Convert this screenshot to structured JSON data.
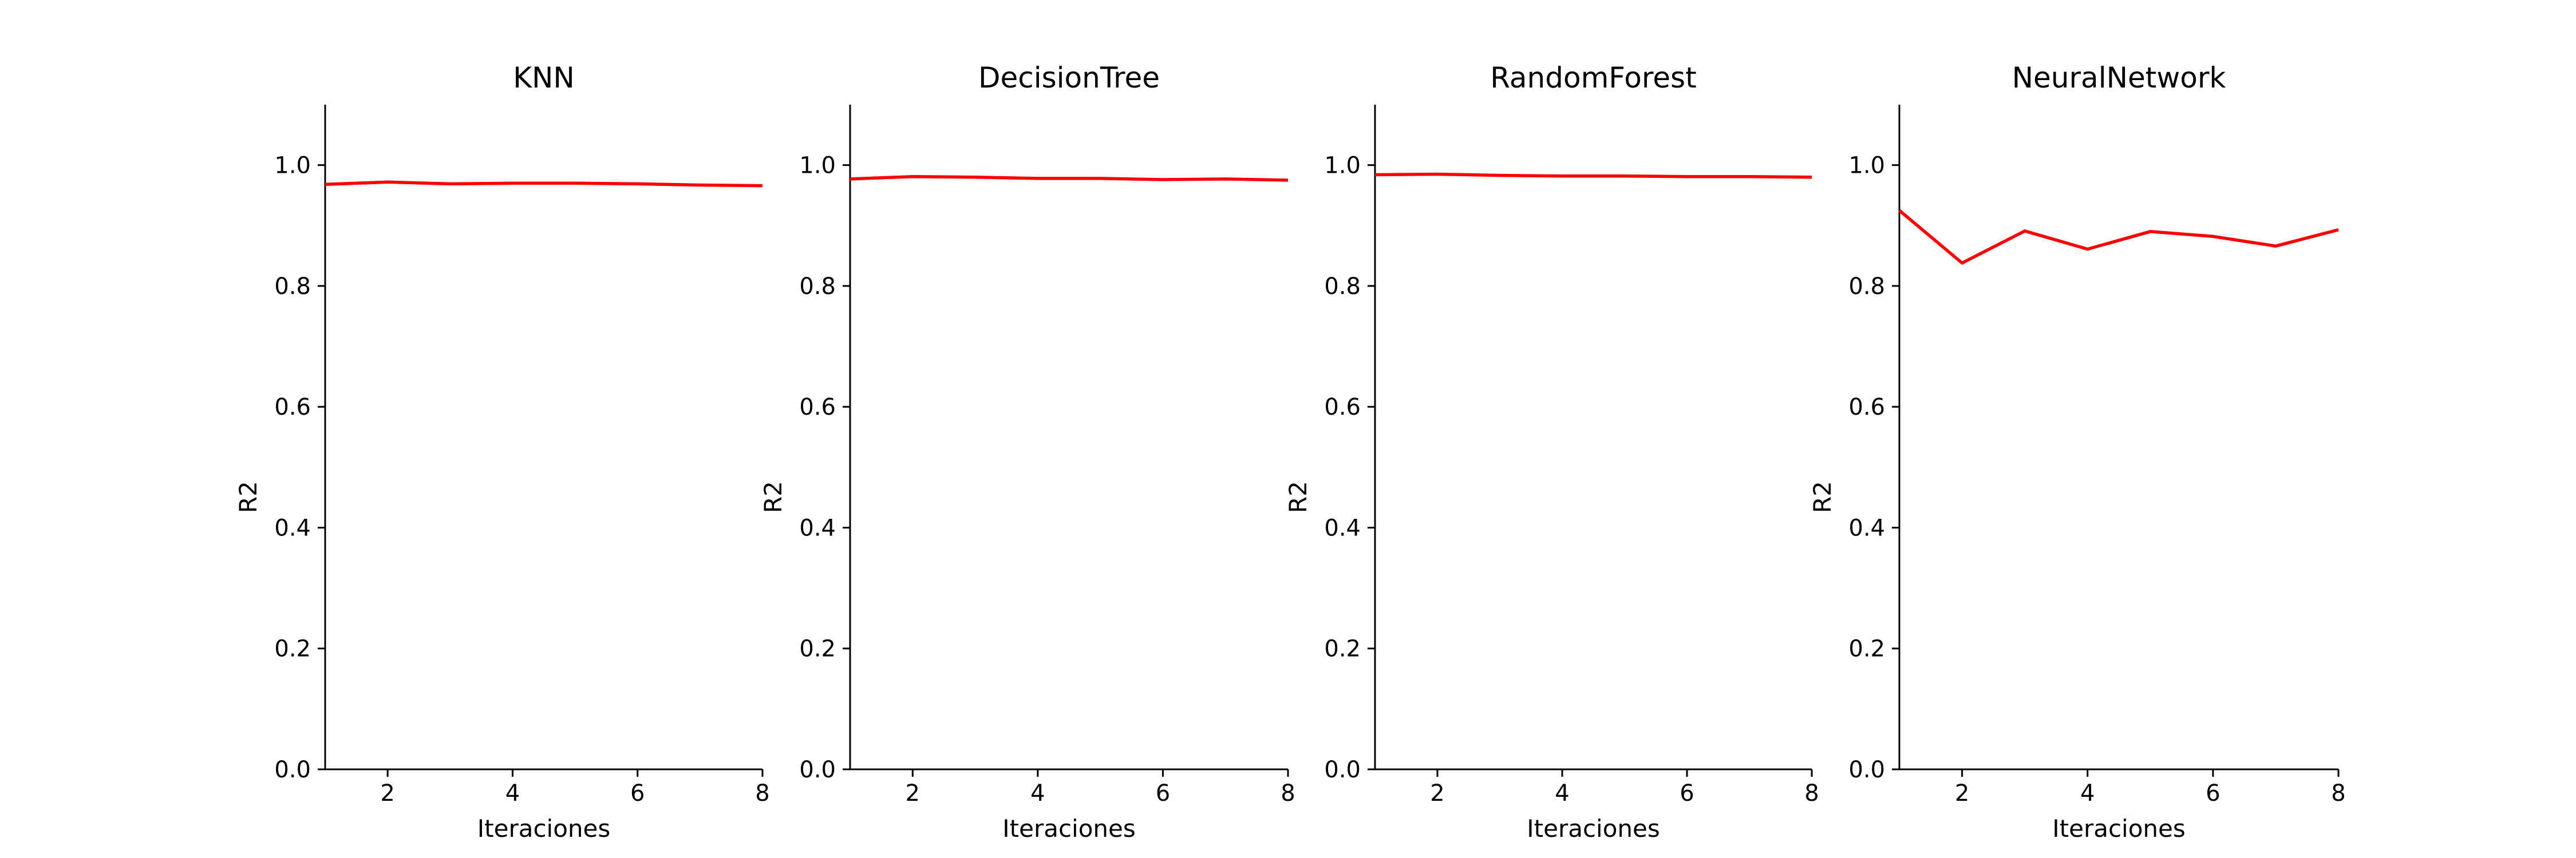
{
  "chart_data": [
    {
      "type": "line",
      "title": "KNN",
      "xlabel": "Iteraciones",
      "ylabel": "R2",
      "xlim": [
        1,
        8
      ],
      "ylim": [
        0,
        1.1
      ],
      "xticks": [
        2,
        4,
        6,
        8
      ],
      "yticks": [
        0.0,
        0.2,
        0.4,
        0.6,
        0.8,
        1.0
      ],
      "grid": false,
      "series": [
        {
          "color": "#ff0000",
          "x": [
            1,
            2,
            3,
            4,
            5,
            6,
            7,
            8
          ],
          "y": [
            0.968,
            0.972,
            0.969,
            0.97,
            0.97,
            0.969,
            0.967,
            0.966
          ]
        }
      ]
    },
    {
      "type": "line",
      "title": "DecisionTree",
      "xlabel": "Iteraciones",
      "ylabel": "R2",
      "xlim": [
        1,
        8
      ],
      "ylim": [
        0,
        1.1
      ],
      "xticks": [
        2,
        4,
        6,
        8
      ],
      "yticks": [
        0.0,
        0.2,
        0.4,
        0.6,
        0.8,
        1.0
      ],
      "grid": false,
      "series": [
        {
          "color": "#ff0000",
          "x": [
            1,
            2,
            3,
            4,
            5,
            6,
            7,
            8
          ],
          "y": [
            0.977,
            0.981,
            0.98,
            0.978,
            0.978,
            0.976,
            0.977,
            0.975
          ]
        }
      ]
    },
    {
      "type": "line",
      "title": "RandomForest",
      "xlabel": "Iteraciones",
      "ylabel": "R2",
      "xlim": [
        1,
        8
      ],
      "ylim": [
        0,
        1.1
      ],
      "xticks": [
        2,
        4,
        6,
        8
      ],
      "yticks": [
        0.0,
        0.2,
        0.4,
        0.6,
        0.8,
        1.0
      ],
      "grid": false,
      "series": [
        {
          "color": "#ff0000",
          "x": [
            1,
            2,
            3,
            4,
            5,
            6,
            7,
            8
          ],
          "y": [
            0.984,
            0.985,
            0.983,
            0.982,
            0.982,
            0.981,
            0.981,
            0.98
          ]
        }
      ]
    },
    {
      "type": "line",
      "title": "NeuralNetwork",
      "xlabel": "Iteraciones",
      "ylabel": "R2",
      "xlim": [
        1,
        8
      ],
      "ylim": [
        0,
        1.1
      ],
      "xticks": [
        2,
        4,
        6,
        8
      ],
      "yticks": [
        0.0,
        0.2,
        0.4,
        0.6,
        0.8,
        1.0
      ],
      "grid": false,
      "series": [
        {
          "color": "#ff0000",
          "x": [
            1,
            2,
            3,
            4,
            5,
            6,
            7,
            8
          ],
          "y": [
            0.925,
            0.838,
            0.891,
            0.861,
            0.89,
            0.882,
            0.866,
            0.893
          ]
        }
      ]
    }
  ]
}
